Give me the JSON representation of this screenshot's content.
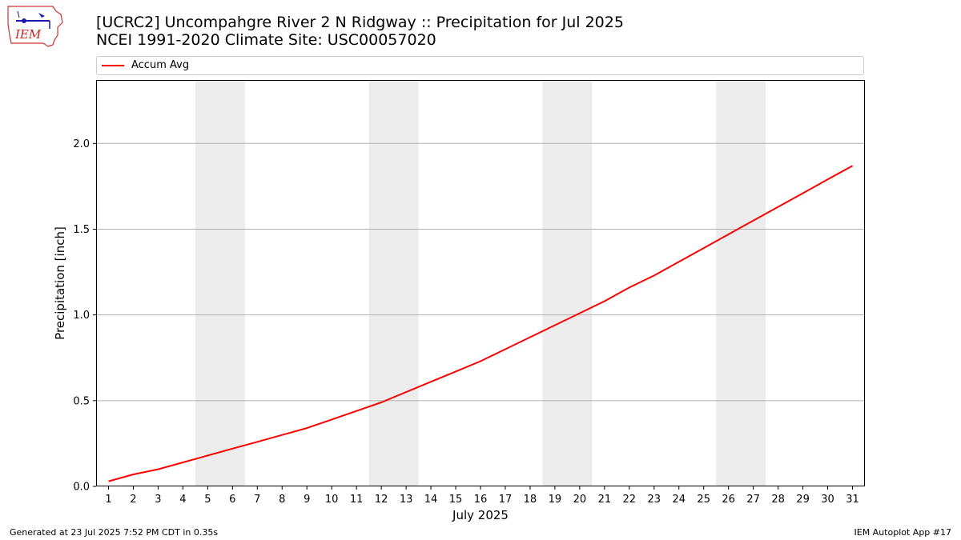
{
  "logo": {
    "text": "IEM"
  },
  "chart": {
    "title_line1": "[UCRC2] Uncompahgre River 2 N Ridgway :: Precipitation for Jul 2025",
    "title_line2": "NCEI 1991-2020 Climate Site: USC00057020"
  },
  "footer": {
    "left": "Generated at 23 Jul 2025 7:52 PM CDT in 0.35s",
    "right": "IEM Autoplot App #17"
  },
  "chart_data": {
    "type": "line",
    "title": "[UCRC2] Uncompahgre River 2 N Ridgway :: Precipitation for Jul 2025",
    "subtitle": "NCEI 1991-2020 Climate Site: USC00057020",
    "xlabel": "July 2025",
    "ylabel": "Precipitation [inch]",
    "x": [
      1,
      2,
      3,
      4,
      5,
      6,
      7,
      8,
      9,
      10,
      11,
      12,
      13,
      14,
      15,
      16,
      17,
      18,
      19,
      20,
      21,
      22,
      23,
      24,
      25,
      26,
      27,
      28,
      29,
      30,
      31
    ],
    "x_tick_labels": [
      "1",
      "2",
      "3",
      "4",
      "5",
      "6",
      "7",
      "8",
      "9",
      "10",
      "11",
      "12",
      "13",
      "14",
      "15",
      "16",
      "17",
      "18",
      "19",
      "20",
      "21",
      "22",
      "23",
      "24",
      "25",
      "26",
      "27",
      "28",
      "29",
      "30",
      "31"
    ],
    "xlim": [
      0.5,
      31.5
    ],
    "ylim": [
      0,
      2.37
    ],
    "y_ticks": [
      0.0,
      0.5,
      1.0,
      1.5,
      2.0
    ],
    "y_tick_labels": [
      "0.0",
      "0.5",
      "1.0",
      "1.5",
      "2.0"
    ],
    "grid": "horizontal",
    "legend_position": "top",
    "weekend_bands": [
      [
        4.5,
        6.5
      ],
      [
        11.5,
        13.5
      ],
      [
        18.5,
        20.5
      ],
      [
        25.5,
        27.5
      ]
    ],
    "band_color": "#ececec",
    "series": [
      {
        "name": "Accum Avg",
        "color": "#ff0000",
        "values": [
          0.03,
          0.07,
          0.1,
          0.14,
          0.18,
          0.22,
          0.26,
          0.3,
          0.34,
          0.39,
          0.44,
          0.49,
          0.55,
          0.61,
          0.67,
          0.73,
          0.8,
          0.87,
          0.94,
          1.01,
          1.08,
          1.16,
          1.23,
          1.31,
          1.39,
          1.47,
          1.55,
          1.63,
          1.71,
          1.79,
          1.87
        ]
      }
    ]
  }
}
